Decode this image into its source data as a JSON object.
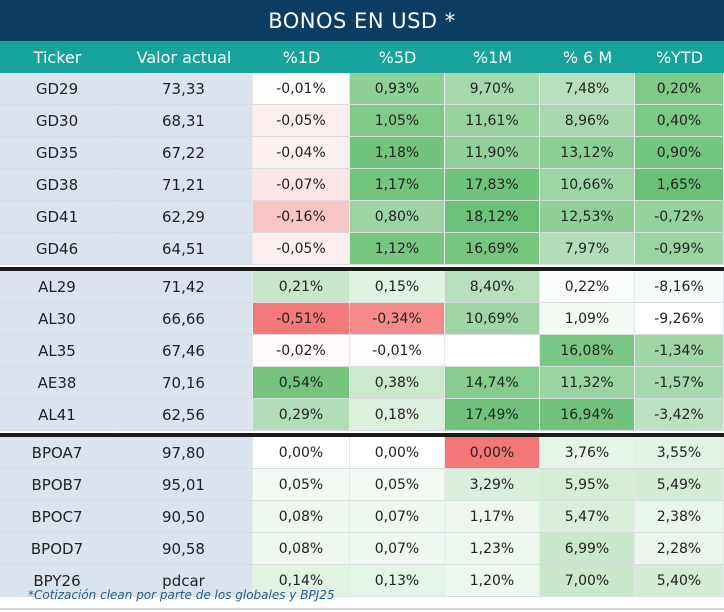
{
  "title": "BONOS EN USD *",
  "columns": [
    "Ticker",
    "Valor actual",
    "%1D",
    "%5D",
    "%1M",
    "% 6 M",
    "%YTD"
  ],
  "groups": [
    [
      {
        "ticker": "GD29",
        "valor": "73,33",
        "vals": [
          "-0,01%",
          "0,93%",
          "9,70%",
          "7,48%",
          "0,20%"
        ],
        "colors": [
          "#fffcfc",
          "#8fd097",
          "#a6d9ac",
          "#b8e0bc",
          "#7fca89"
        ]
      },
      {
        "ticker": "GD30",
        "valor": "68,31",
        "vals": [
          "-0,05%",
          "1,05%",
          "11,61%",
          "8,96%",
          "0,40%"
        ],
        "colors": [
          "#fdeeee",
          "#80ca89",
          "#96d39d",
          "#a8d9ae",
          "#7cc987"
        ]
      },
      {
        "ticker": "GD35",
        "valor": "67,22",
        "vals": [
          "-0,04%",
          "1,18%",
          "11,90%",
          "13,12%",
          "0,90%"
        ],
        "colors": [
          "#fdf0f0",
          "#72c47d",
          "#92d19a",
          "#8ccf95",
          "#74c57f"
        ]
      },
      {
        "ticker": "GD38",
        "valor": "71,21",
        "vals": [
          "-0,07%",
          "1,17%",
          "17,83%",
          "10,66%",
          "1,65%"
        ],
        "colors": [
          "#fce5e5",
          "#73c57e",
          "#6ec279",
          "#9dd5a4",
          "#6ac076"
        ]
      },
      {
        "ticker": "GD41",
        "valor": "62,29",
        "vals": [
          "-0,16%",
          "0,80%",
          "18,12%",
          "12,53%",
          "-0,72%"
        ],
        "colors": [
          "#f9c6c6",
          "#9cd5a3",
          "#6bc177",
          "#90d098",
          "#95d29c"
        ]
      },
      {
        "ticker": "GD46",
        "valor": "64,51",
        "vals": [
          "-0,05%",
          "1,12%",
          "16,69%",
          "7,97%",
          "-0,99%"
        ],
        "colors": [
          "#fdefef",
          "#77c681",
          "#76c680",
          "#b2ddb7",
          "#9ad4a1"
        ]
      }
    ],
    [
      {
        "ticker": "AL29",
        "valor": "71,42",
        "vals": [
          "0,21%",
          "0,15%",
          "8,40%",
          "0,22%",
          "-8,16%"
        ],
        "colors": [
          "#c8e7cb",
          "#e0f2e2",
          "#b8e0bc",
          "#fafdfa",
          "#f7fbf8"
        ]
      },
      {
        "ticker": "AL30",
        "valor": "66,66",
        "vals": [
          "-0,51%",
          "-0,34%",
          "10,69%",
          "1,09%",
          "-9,26%"
        ],
        "colors": [
          "#f47a7a",
          "#f68989",
          "#a0d6a6",
          "#f3faf4",
          "#ffffff"
        ]
      },
      {
        "ticker": "AL35",
        "valor": "67,46",
        "vals": [
          "-0,02%",
          "-0,01%",
          "",
          "16,08%",
          "-1,34%"
        ],
        "colors": [
          "#fefafa",
          "#fefcfc",
          "#ffffff",
          "#79c783",
          "#a0d6a6"
        ]
      },
      {
        "ticker": "AE38",
        "valor": "70,16",
        "vals": [
          "0,54%",
          "0,38%",
          "14,74%",
          "11,32%",
          "-1,57%"
        ],
        "colors": [
          "#74c47e",
          "#cbe9ce",
          "#85cc8e",
          "#9ad4a1",
          "#a6d9ac"
        ]
      },
      {
        "ticker": "AL41",
        "valor": "62,56",
        "vals": [
          "0,29%",
          "0,18%",
          "17,49%",
          "16,94%",
          "-3,42%"
        ],
        "colors": [
          "#b3ddb8",
          "#dcf0de",
          "#6fc27a",
          "#70c37b",
          "#bde2c1"
        ]
      }
    ],
    [
      {
        "ticker": "BPOA7",
        "valor": "97,80",
        "vals": [
          "0,00%",
          "0,00%",
          "0,00%",
          "3,76%",
          "3,55%"
        ],
        "colors": [
          "#ffffff",
          "#ffffff",
          "#f47676",
          "#e7f5e9",
          "#e2f3e4"
        ]
      },
      {
        "ticker": "BPOB7",
        "valor": "95,01",
        "vals": [
          "0,05%",
          "0,05%",
          "3,29%",
          "5,95%",
          "5,49%"
        ],
        "colors": [
          "#f3faf4",
          "#f3faf4",
          "#d8efdb",
          "#d4edd7",
          "#d2ecd5"
        ]
      },
      {
        "ticker": "BPOC7",
        "valor": "90,50",
        "vals": [
          "0,08%",
          "0,07%",
          "1,17%",
          "5,47%",
          "2,38%"
        ],
        "colors": [
          "#eef8ef",
          "#eff8f0",
          "#edf7ee",
          "#d8efdb",
          "#e9f6eb"
        ]
      },
      {
        "ticker": "BPOD7",
        "valor": "90,58",
        "vals": [
          "0,08%",
          "0,07%",
          "1,23%",
          "6,99%",
          "2,28%"
        ],
        "colors": [
          "#eef8ef",
          "#eff8f0",
          "#ecf7ed",
          "#cae8cd",
          "#eaf6ec"
        ]
      },
      {
        "ticker": "BPY26",
        "valor": "pdcar",
        "vals": [
          "0,14%",
          "0,13%",
          "1,20%",
          "7,00%",
          "5,40%"
        ],
        "colors": [
          "#e2f3e4",
          "#e4f4e6",
          "#ecf7ed",
          "#c9e8cc",
          "#d3ecd6"
        ]
      }
    ]
  ],
  "footnote": "*Cotización clean por parte de los globales y BPJ25",
  "colors": {
    "title_bg": "#0b3c63",
    "header_bg": "#15a39c",
    "ticker_bg": "#dbe3ee"
  }
}
